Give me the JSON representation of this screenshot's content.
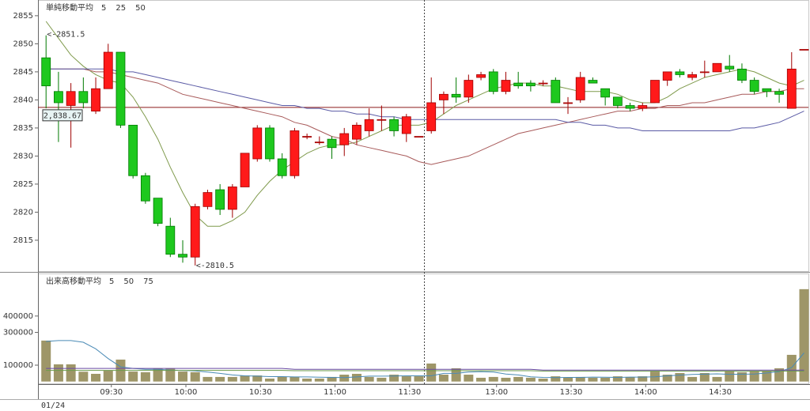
{
  "chart_data": [
    {
      "type": "candlestick",
      "legend_title": "単純移動平均",
      "up_color": "#ff1a1a",
      "down_color": "#1ec81e",
      "ylim": [
        2809.5,
        2857.8
      ],
      "yticks": [
        2815,
        2820,
        2825,
        2830,
        2835,
        2840,
        2845,
        2850,
        2855
      ],
      "open": [
        2847.5,
        2841.5,
        2839,
        2841.5,
        2838,
        2842,
        2848.5,
        2835.5,
        2826.5,
        2822.5,
        2817.5,
        2812.5,
        2812,
        2821,
        2824,
        2820.5,
        2824.5,
        2829.5,
        2835,
        2829.5,
        2826.5,
        2833.5,
        2832.5,
        2833,
        2832,
        2833,
        2834.5,
        2836.5,
        2836.5,
        2834,
        2833.5,
        2834.5,
        2840,
        2841,
        2840.5,
        2844,
        2845,
        2841.5,
        2843,
        2843,
        2843,
        2843.5,
        2839.5,
        2840,
        2843.5,
        2842,
        2840.5,
        2839,
        2838.5,
        2839.5,
        2843.5,
        2845,
        2844,
        2845,
        2845,
        2846,
        2845.5,
        2843.5,
        2842,
        2841.5,
        2838.5,
        2849
      ],
      "high": [
        2851.5,
        2845,
        2843,
        2844,
        2844,
        2850,
        2848.5,
        2835.5,
        2827,
        2822.5,
        2819,
        2815,
        2821.5,
        2824,
        2825,
        2825,
        2830.5,
        2835.5,
        2835.5,
        2830.5,
        2835,
        2834,
        2833.5,
        2833.5,
        2835,
        2836,
        2838.5,
        2839,
        2837,
        2837.5,
        2833.5,
        2844,
        2841.5,
        2844,
        2844.5,
        2845,
        2845.5,
        2845,
        2845,
        2843.5,
        2843.5,
        2844,
        2840.5,
        2845,
        2844,
        2842,
        2840.5,
        2839.5,
        2839.5,
        2843.5,
        2845,
        2845.5,
        2845,
        2847,
        2846.5,
        2848,
        2846.5,
        2844,
        2842,
        2842,
        2848.5,
        2849
      ],
      "low": [
        2838.5,
        2832.5,
        2831.5,
        2838.5,
        2837.5,
        2842,
        2835,
        2826,
        2821.5,
        2817.5,
        2812,
        2811,
        2810.5,
        2820.5,
        2819.5,
        2819,
        2824.5,
        2829,
        2829,
        2826,
        2826,
        2833,
        2832,
        2829.5,
        2830,
        2832,
        2833.5,
        2834.5,
        2833.5,
        2832.5,
        2833.5,
        2834,
        2837.5,
        2839.5,
        2839.5,
        2843.5,
        2841,
        2841,
        2842,
        2841.5,
        2842.5,
        2839.5,
        2837.5,
        2839.5,
        2843,
        2839,
        2838.5,
        2838,
        2838,
        2839.5,
        2842.5,
        2844,
        2843.5,
        2844,
        2845,
        2845,
        2843,
        2841,
        2840.5,
        2839.5,
        2838.5,
        2849
      ],
      "close": [
        2842.5,
        2839.5,
        2841.5,
        2839.5,
        2842,
        2848.5,
        2835.5,
        2826.5,
        2822,
        2818,
        2812.5,
        2812,
        2821,
        2823.5,
        2820.5,
        2824.5,
        2830.5,
        2835,
        2829.5,
        2826.5,
        2834.5,
        2833.5,
        2832.5,
        2831.5,
        2834,
        2835.5,
        2836.5,
        2836.5,
        2834.5,
        2837,
        2833.5,
        2839.5,
        2841,
        2840.5,
        2843.5,
        2844.5,
        2841.5,
        2843.5,
        2842.5,
        2842.5,
        2843,
        2839.5,
        2839.5,
        2844,
        2843,
        2840.5,
        2839,
        2838.5,
        2839,
        2843.5,
        2845,
        2844.5,
        2844.5,
        2845,
        2846.5,
        2845.5,
        2843.5,
        2841.5,
        2841.5,
        2841,
        2845.5,
        2849
      ],
      "series": [
        {
          "name": "5",
          "color": "#7f9a4c",
          "values": [
            2854,
            2851,
            2848,
            2846,
            2844.5,
            2843.5,
            2843,
            2840.5,
            2837,
            2833,
            2828,
            2823.5,
            2819.5,
            2817.5,
            2817.5,
            2818.5,
            2820,
            2823,
            2825.5,
            2827.5,
            2829,
            2830.5,
            2831.5,
            2832,
            2832,
            2832.5,
            2833.5,
            2834.5,
            2835.5,
            2835.5,
            2835.5,
            2836,
            2837.5,
            2839,
            2840,
            2841,
            2842,
            2842.5,
            2843,
            2843,
            2842.5,
            2842.5,
            2842,
            2841.5,
            2841.5,
            2841.5,
            2841,
            2840,
            2839.5,
            2839.5,
            2840.5,
            2842,
            2843,
            2844,
            2844.5,
            2845,
            2845.5,
            2845,
            2844,
            2843,
            2842.5,
            2843.5
          ]
        },
        {
          "name": "25",
          "color": "#a85a5a",
          "values": [
            2845.5,
            2845.5,
            2845.5,
            2845.5,
            2845,
            2845,
            2844.5,
            2844,
            2843.5,
            2843,
            2842,
            2841,
            2840.5,
            2840,
            2839.5,
            2839,
            2838.5,
            2838,
            2837.5,
            2837,
            2836,
            2835.5,
            2834.5,
            2833.5,
            2833,
            2832,
            2831.5,
            2831,
            2830.5,
            2830,
            2829,
            2828.5,
            2829,
            2829.5,
            2830,
            2831,
            2832,
            2833,
            2834,
            2834.5,
            2835,
            2835.5,
            2836,
            2836.5,
            2837,
            2837.5,
            2838,
            2838,
            2838.5,
            2838.5,
            2839,
            2839,
            2839.5,
            2839.5,
            2840,
            2840.5,
            2841,
            2841,
            2841.5,
            2841.5,
            2842,
            2842
          ]
        },
        {
          "name": "50",
          "color": "#5a5aa5",
          "values": [
            2845.5,
            2845.5,
            2845.5,
            2845.5,
            2845.5,
            2845.5,
            2845,
            2845,
            2844.5,
            2844,
            2843.5,
            2843,
            2842.5,
            2842,
            2841.5,
            2841,
            2840.5,
            2840,
            2839.5,
            2839,
            2839,
            2838.5,
            2838.5,
            2838,
            2838,
            2837.5,
            2837.5,
            2837,
            2837,
            2836.5,
            2836.5,
            2836.5,
            2836.5,
            2836.5,
            2836.5,
            2836.5,
            2836.5,
            2836.5,
            2836.5,
            2836.5,
            2836.5,
            2836.5,
            2836,
            2836,
            2835.5,
            2835.5,
            2835,
            2835,
            2834.5,
            2834.5,
            2834.5,
            2834.5,
            2834.5,
            2834.5,
            2834.5,
            2834.5,
            2835,
            2835,
            2835.5,
            2836,
            2837,
            2838
          ]
        }
      ],
      "annotations": [
        {
          "text": "<-2851.5",
          "value": 2851.5,
          "color": "#e00000"
        },
        {
          "text": "<-2810.5",
          "value": 2810.5,
          "color": "#009a00"
        }
      ],
      "cursor": {
        "value": 2838.67,
        "label": "2,838.67",
        "color": "#8b1a1a"
      }
    },
    {
      "type": "bar",
      "legend_title": "出来高移動平均",
      "color": "#9e9668",
      "ylim": [
        -11000,
        655000
      ],
      "yticks": [
        100000,
        300000,
        400000
      ],
      "xlabel": "01/24",
      "categories": [
        null,
        null,
        null,
        null,
        null,
        "09:30",
        null,
        null,
        null,
        null,
        null,
        "10:00",
        null,
        null,
        null,
        null,
        null,
        "10:30",
        null,
        null,
        null,
        null,
        null,
        "11:00",
        null,
        null,
        null,
        null,
        null,
        "11:30",
        null,
        null,
        null,
        null,
        null,
        null,
        "13:00",
        null,
        null,
        null,
        null,
        null,
        "13:30",
        null,
        null,
        null,
        null,
        null,
        "14:00",
        null,
        null,
        null,
        null,
        null,
        "14:30",
        null,
        null,
        null,
        null,
        null,
        null,
        null
      ],
      "values": [
        250000,
        105000,
        105000,
        60000,
        47000,
        66000,
        134000,
        61000,
        57000,
        81000,
        81000,
        61000,
        57000,
        28000,
        28000,
        28000,
        37000,
        37000,
        18000,
        28000,
        28000,
        18000,
        18000,
        28000,
        42000,
        47000,
        28000,
        23000,
        42000,
        32000,
        32000,
        110000,
        42000,
        81000,
        42000,
        23000,
        28000,
        23000,
        28000,
        23000,
        18000,
        32000,
        23000,
        28000,
        23000,
        23000,
        32000,
        28000,
        32000,
        61000,
        42000,
        52000,
        28000,
        52000,
        28000,
        61000,
        57000,
        61000,
        66000,
        81000,
        163000,
        564000
      ],
      "series": [
        {
          "name": "5",
          "color": "#4a8ab5",
          "values": [
            245000,
            250000,
            250000,
            240000,
            200000,
            140000,
            90000,
            80000,
            75000,
            75000,
            70000,
            68000,
            65000,
            58000,
            50000,
            40000,
            35000,
            33000,
            30000,
            30000,
            28000,
            28000,
            26000,
            25000,
            24000,
            28000,
            33000,
            33000,
            34000,
            35000,
            35000,
            35000,
            50000,
            50000,
            58000,
            60000,
            58000,
            46000,
            40000,
            29000,
            25000,
            24000,
            25000,
            25000,
            27000,
            26000,
            25000,
            27000,
            27000,
            29000,
            35000,
            39000,
            43000,
            45000,
            47000,
            44000,
            45000,
            46000,
            52000,
            60000,
            85000,
            175000
          ]
        },
        {
          "name": "50",
          "color": "#6a4aa5",
          "values": [
            80000,
            80000,
            80000,
            80000,
            80000,
            80000,
            80000,
            80000,
            80000,
            80000,
            80000,
            80000,
            80000,
            80000,
            80000,
            80000,
            80000,
            80000,
            80000,
            80000,
            75000,
            75000,
            75000,
            75000,
            75000,
            75000,
            75000,
            75000,
            75000,
            75000,
            75000,
            75000,
            75000,
            75000,
            75000,
            75000,
            75000,
            75000,
            75000,
            75000,
            70000,
            70000,
            70000,
            70000,
            70000,
            70000,
            70000,
            70000,
            70000,
            70000,
            70000,
            70000,
            70000,
            70000,
            70000,
            70000,
            70000,
            70000,
            70000,
            70000,
            70000,
            70000
          ]
        },
        {
          "name": "75",
          "color": "#6a9a4a",
          "values": [
            68000,
            68000,
            68000,
            68000,
            68000,
            68000,
            68000,
            68000,
            68000,
            68000,
            68000,
            68000,
            68000,
            68000,
            68000,
            68000,
            68000,
            68000,
            68000,
            68000,
            66000,
            66000,
            66000,
            66000,
            66000,
            66000,
            66000,
            66000,
            66000,
            66000,
            66000,
            66000,
            66000,
            66000,
            66000,
            66000,
            66000,
            66000,
            66000,
            66000,
            64000,
            64000,
            64000,
            64000,
            64000,
            64000,
            64000,
            64000,
            64000,
            64000,
            64000,
            64000,
            64000,
            64000,
            64000,
            64000,
            64000,
            64000,
            64000,
            64000,
            64000,
            64000
          ]
        }
      ]
    }
  ]
}
